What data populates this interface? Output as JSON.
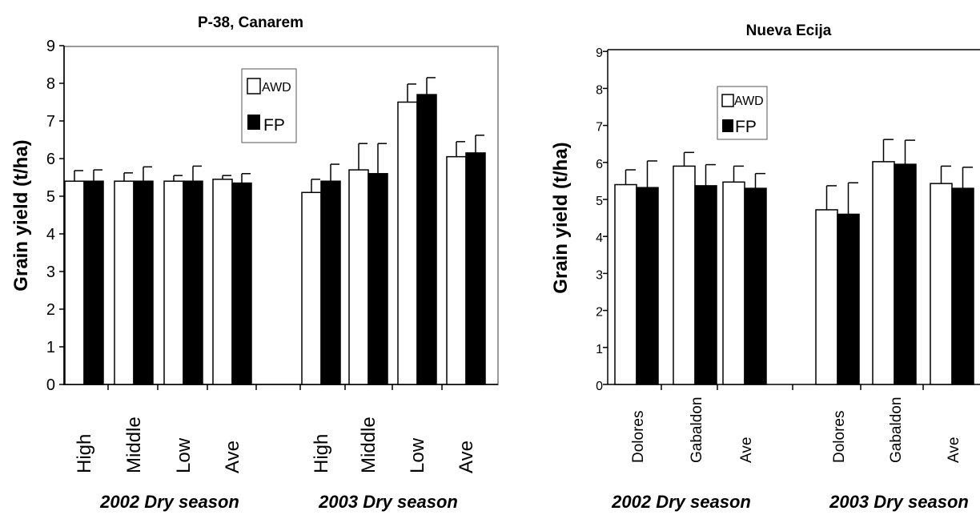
{
  "chart_data": [
    {
      "type": "bar",
      "title": "P-38, Canarem",
      "ylabel": "Grain yield (t/ha)",
      "xlabel": "",
      "ylim": [
        0,
        9
      ],
      "yticks": [
        "0",
        "1",
        "2",
        "3",
        "4",
        "5",
        "6",
        "7",
        "8",
        "9"
      ],
      "grid": false,
      "legend": "top-center",
      "groups": [
        "2002 Dry season",
        "2003 Dry season"
      ],
      "categories": [
        "High",
        "Middle",
        "Low",
        "Ave",
        "High",
        "Middle",
        "Low",
        "Ave"
      ],
      "series": [
        {
          "name": "AWD",
          "values": [
            5.4,
            5.4,
            5.4,
            5.45,
            5.1,
            5.7,
            7.5,
            6.05
          ],
          "errors": [
            0.28,
            0.22,
            0.15,
            0.1,
            0.35,
            0.7,
            0.48,
            0.4
          ],
          "color": "#ffffff"
        },
        {
          "name": "FP",
          "values": [
            5.4,
            5.4,
            5.4,
            5.35,
            5.4,
            5.6,
            7.7,
            6.15
          ],
          "errors": [
            0.3,
            0.38,
            0.4,
            0.25,
            0.45,
            0.8,
            0.45,
            0.47
          ],
          "color": "#000000"
        }
      ]
    },
    {
      "type": "bar",
      "title": "Nueva Ecija",
      "ylabel": "Grain yield (t/ha)",
      "xlabel": "",
      "ylim": [
        0,
        9
      ],
      "yticks": [
        "0",
        "1",
        "2",
        "3",
        "4",
        "5",
        "6",
        "7",
        "8",
        "9"
      ],
      "grid": false,
      "legend": "top-left",
      "groups": [
        "2002 Dry season",
        "2003 Dry season"
      ],
      "categories": [
        "Dolores",
        "Gabaldon",
        "Ave",
        "Dolores",
        "Gabaldon",
        "Ave"
      ],
      "series": [
        {
          "name": "AWD",
          "values": [
            5.4,
            5.9,
            5.47,
            4.72,
            6.02,
            5.43
          ],
          "errors": [
            0.4,
            0.37,
            0.43,
            0.65,
            0.6,
            0.47
          ],
          "color": "#ffffff"
        },
        {
          "name": "FP",
          "values": [
            5.32,
            5.37,
            5.3,
            4.6,
            5.95,
            5.3
          ],
          "errors": [
            0.72,
            0.57,
            0.4,
            0.85,
            0.65,
            0.57
          ],
          "color": "#000000"
        }
      ]
    }
  ]
}
